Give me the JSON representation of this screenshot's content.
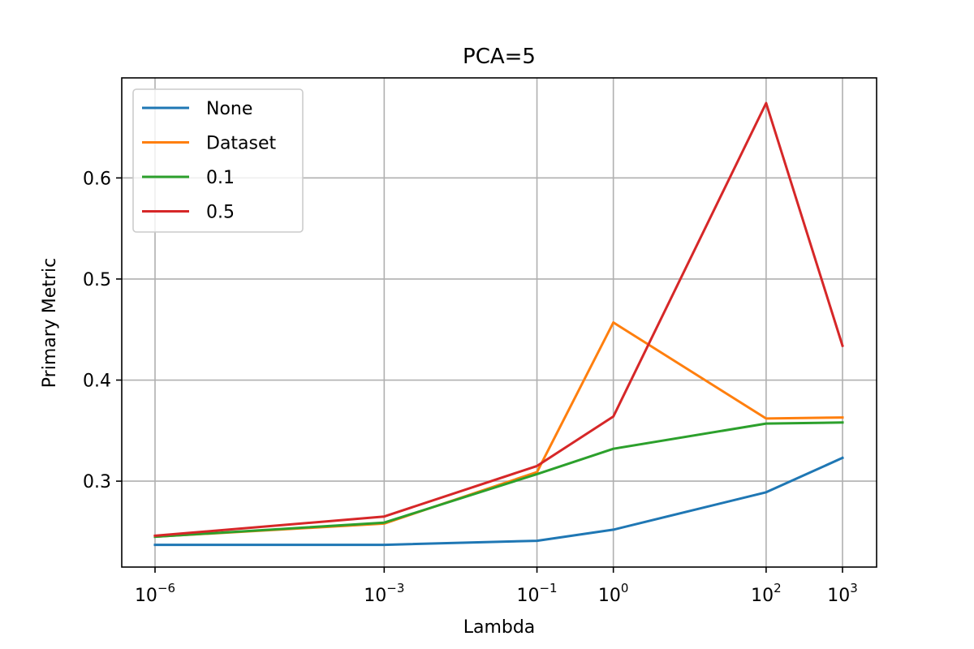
{
  "chart_data": {
    "type": "line",
    "title": "PCA=5",
    "xlabel": "Lambda",
    "ylabel": "Primary Metric",
    "xscale": "log",
    "x": [
      1e-06,
      0.001,
      0.1,
      1,
      100,
      1000
    ],
    "x_tick_labels": [
      {
        "value": 1e-06,
        "base": "10",
        "exp": "−6"
      },
      {
        "value": 0.001,
        "base": "10",
        "exp": "−3"
      },
      {
        "value": 0.1,
        "base": "10",
        "exp": "−1"
      },
      {
        "value": 1,
        "base": "10",
        "exp": "0"
      },
      {
        "value": 100,
        "base": "10",
        "exp": "2"
      },
      {
        "value": 1000,
        "base": "10",
        "exp": "3"
      }
    ],
    "y_ticks": [
      {
        "value": 0.3,
        "label": "0.3"
      },
      {
        "value": 0.4,
        "label": "0.4"
      },
      {
        "value": 0.5,
        "label": "0.5"
      },
      {
        "value": 0.6,
        "label": "0.6"
      }
    ],
    "ylim": [
      0.215,
      0.699
    ],
    "grid": true,
    "legend_position": "top-left",
    "series": [
      {
        "name": "None",
        "color": "#1f77b4",
        "values": [
          0.237,
          0.237,
          0.241,
          0.252,
          0.289,
          0.323
        ]
      },
      {
        "name": "Dataset",
        "color": "#ff7f0e",
        "values": [
          0.245,
          0.258,
          0.309,
          0.457,
          0.362,
          0.363
        ]
      },
      {
        "name": "0.1",
        "color": "#2ca02c",
        "values": [
          0.245,
          0.259,
          0.307,
          0.332,
          0.357,
          0.358
        ]
      },
      {
        "name": "0.5",
        "color": "#d62728",
        "values": [
          0.246,
          0.265,
          0.315,
          0.364,
          0.674,
          0.434
        ]
      }
    ]
  }
}
